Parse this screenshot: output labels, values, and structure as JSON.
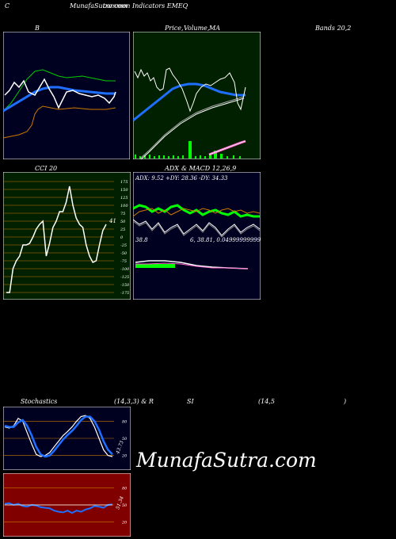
{
  "header": {
    "left": "C",
    "title": "MunafaSutra.com",
    "subtitle": "common Indicators EMEQ"
  },
  "panels": {
    "bollinger": {
      "label": "B",
      "bands_label": "Bands 20,2"
    },
    "price": {
      "label": "Price,",
      "label2": "Volume,",
      "label3": "MA"
    },
    "cci": {
      "label": "CCI 20",
      "value_label": "41"
    },
    "adx": {
      "label": "ADX",
      "label2": "& MACD 12,26,9",
      "readout": "ADX: 9.52  +DY: 28.36  -DY: 34.33",
      "macd_readout_left": "38.8",
      "macd_readout_right": "6,  38.81,  0.049999999999997"
    },
    "stoch": {
      "label": "Stochastics",
      "params": "(14,3,3) & R",
      "value_label": "43.73"
    },
    "rsi": {
      "label": "SI",
      "params": "(14,5",
      "close": ")",
      "value_label": "51.34"
    }
  },
  "watermark": "MunafaSutra.com",
  "colors": {
    "dark_navy": "#000020",
    "dark_green": "#002000",
    "dark_red": "#800000",
    "blue": "#1e6fff",
    "green": "#00ff00",
    "orange": "#cc7a00",
    "pink": "#ff66cc"
  },
  "chart_data": [
    {
      "type": "line",
      "name": "cci",
      "ylim": [
        -175,
        175
      ],
      "yticks": [
        "175",
        "150",
        "125",
        "100",
        "75",
        "50",
        "25",
        "0",
        "-25",
        "-50",
        "-75",
        "-100",
        "-125",
        "-150",
        "-175"
      ],
      "values": [
        -175,
        -175,
        -100,
        -75,
        -60,
        -25,
        -25,
        -20,
        0,
        25,
        40,
        50,
        -60,
        -20,
        30,
        50,
        80,
        80,
        110,
        160,
        100,
        60,
        40,
        30,
        -25,
        -60,
        -80,
        -75,
        -25,
        20,
        40
      ]
    },
    {
      "type": "line",
      "name": "stochastics",
      "ylim": [
        0,
        100
      ],
      "yticks": [
        "80",
        "50",
        "20"
      ],
      "series": [
        {
          "values": [
            70,
            68,
            72,
            85,
            80,
            60,
            40,
            22,
            18,
            20,
            25,
            35,
            45,
            55,
            62,
            70,
            80,
            88,
            90,
            85,
            70,
            50,
            30,
            20,
            18
          ]
        },
        {
          "values": [
            72,
            70,
            70,
            78,
            82,
            72,
            55,
            35,
            22,
            18,
            20,
            28,
            38,
            48,
            56,
            63,
            72,
            82,
            88,
            88,
            80,
            65,
            45,
            30,
            22
          ]
        }
      ]
    },
    {
      "type": "line",
      "name": "rsi",
      "ylim": [
        0,
        100
      ],
      "yticks": [
        "80",
        "50",
        "20"
      ],
      "series": [
        {
          "values": [
            52,
            53,
            50,
            52,
            48,
            47,
            50,
            49,
            46,
            45,
            44,
            40,
            38,
            37,
            40,
            36,
            40,
            38,
            42,
            44,
            48,
            47,
            45,
            50,
            51
          ]
        }
      ]
    }
  ]
}
